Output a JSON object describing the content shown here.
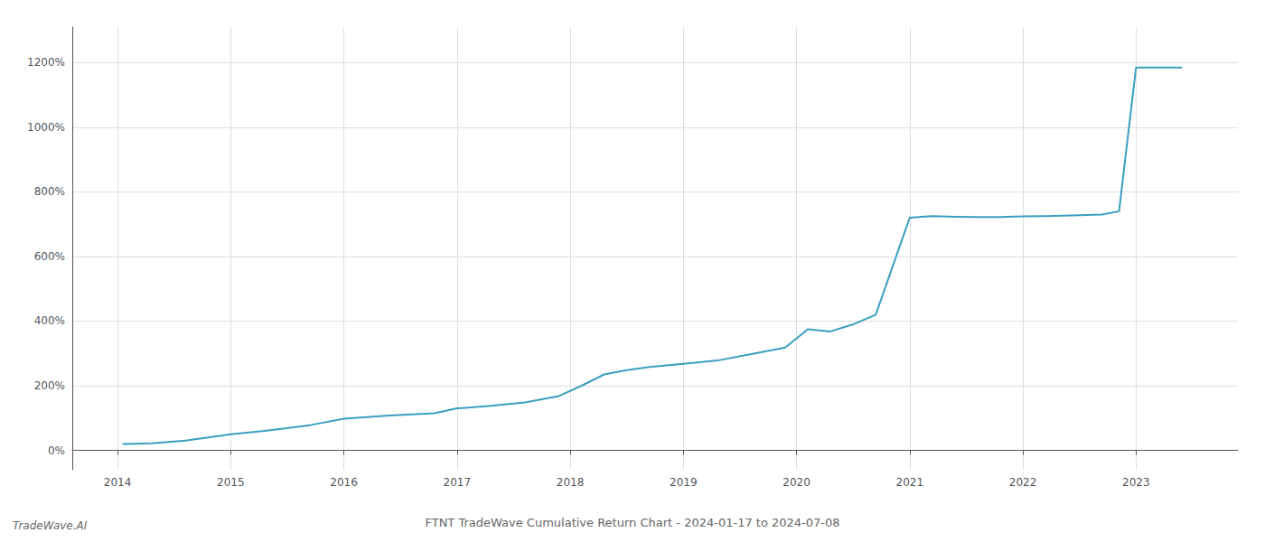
{
  "chart_data": {
    "type": "line",
    "title": "FTNT TradeWave Cumulative Return Chart - 2024-01-17 to 2024-07-08",
    "annotations": [
      "TradeWave.AI"
    ],
    "x": [
      2014.05,
      2014.3,
      2014.6,
      2015.0,
      2015.3,
      2015.7,
      2016.0,
      2016.4,
      2016.8,
      2017.0,
      2017.3,
      2017.6,
      2017.9,
      2018.1,
      2018.3,
      2018.5,
      2018.7,
      2019.0,
      2019.3,
      2019.6,
      2019.9,
      2020.1,
      2020.3,
      2020.5,
      2020.7,
      2021.0,
      2021.2,
      2021.4,
      2021.6,
      2021.8,
      2022.0,
      2022.2,
      2022.5,
      2022.7,
      2022.85,
      2023.0,
      2023.4
    ],
    "values": [
      20,
      22,
      30,
      50,
      60,
      78,
      98,
      108,
      115,
      130,
      138,
      148,
      168,
      200,
      235,
      248,
      258,
      268,
      278,
      298,
      318,
      375,
      368,
      390,
      420,
      720,
      725,
      723,
      722,
      722,
      724,
      725,
      728,
      730,
      740,
      1185,
      1185
    ],
    "color": "#3a9fc0",
    "xlim": [
      2013.6,
      2023.9
    ],
    "xticks": [
      2014,
      2015,
      2016,
      2017,
      2018,
      2019,
      2020,
      2021,
      2022,
      2023
    ],
    "ylim": [
      -60,
      1310
    ],
    "yticks": [
      {
        "value": 0,
        "label": "0%"
      },
      {
        "value": 200,
        "label": "200%"
      },
      {
        "value": 400,
        "label": "400%"
      },
      {
        "value": 600,
        "label": "600%"
      },
      {
        "value": 800,
        "label": "800%"
      },
      {
        "value": 1000,
        "label": "1000%"
      },
      {
        "value": 1200,
        "label": "1200%"
      }
    ],
    "grid": true
  }
}
